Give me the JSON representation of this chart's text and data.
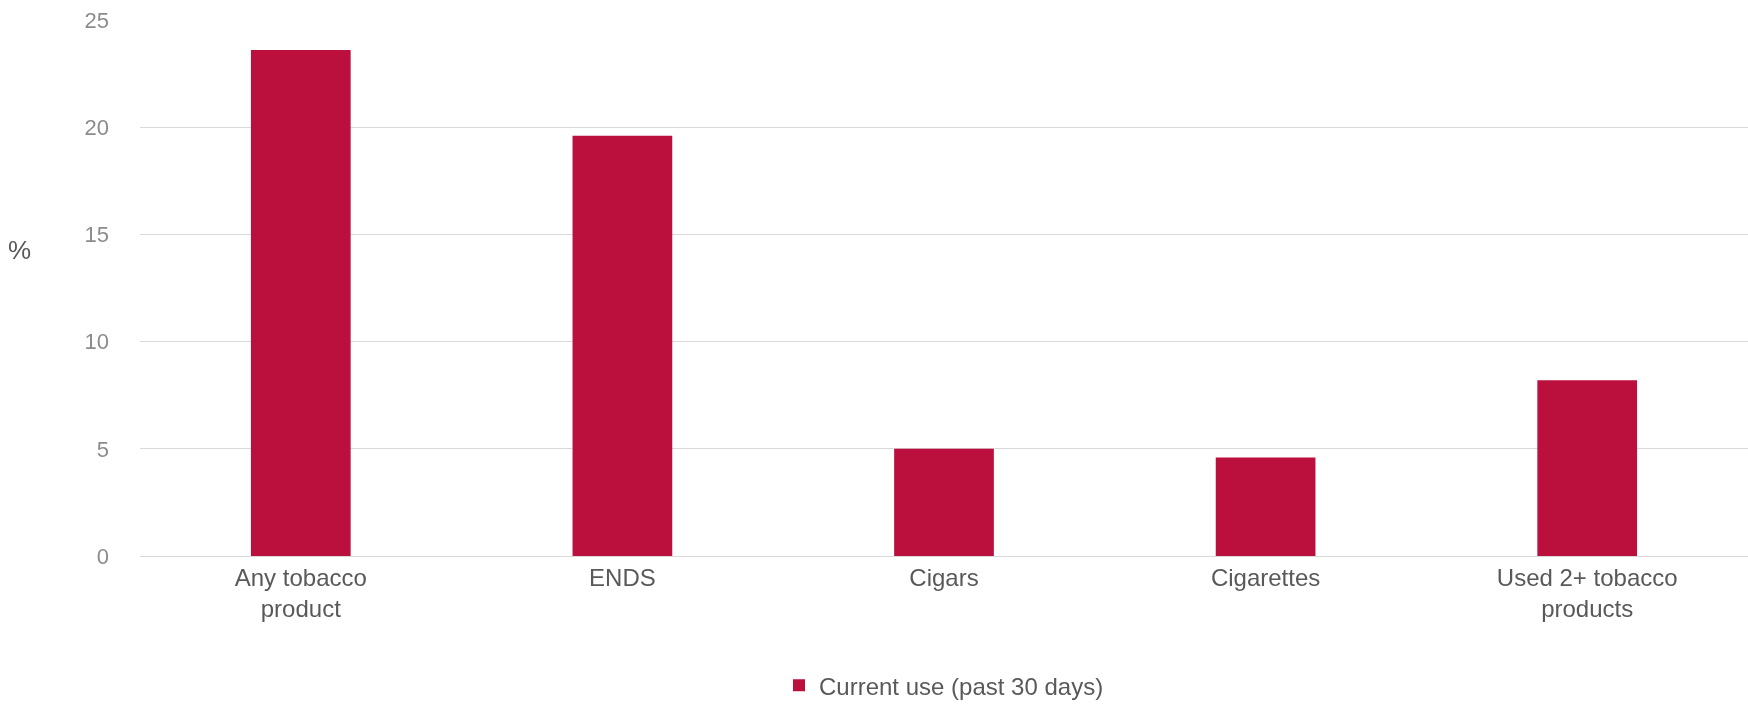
{
  "chart_data": {
    "type": "bar",
    "ylabel": "%",
    "categories": [
      "Any tobacco product",
      "ENDS",
      "Cigars",
      "Cigarettes",
      "Used 2+ tobacco products"
    ],
    "series": [
      {
        "name": "Current use (past 30 days)",
        "color": "#bb0f3d",
        "values": [
          23.6,
          19.6,
          5.0,
          4.6,
          8.2
        ]
      }
    ],
    "ylim": [
      0,
      25
    ],
    "yticks": [
      0,
      5,
      10,
      15,
      20,
      25
    ],
    "grid": "y",
    "legend": "bottom"
  }
}
